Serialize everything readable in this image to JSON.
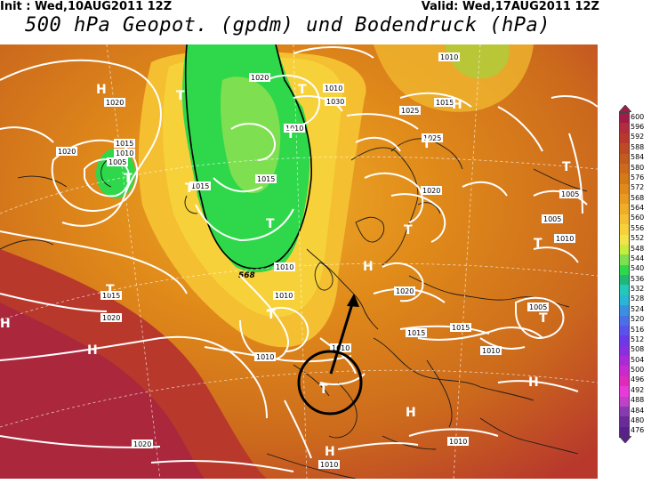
{
  "header": {
    "init": "Init : Wed,10AUG2011 12Z",
    "valid": "Valid: Wed,17AUG2011 12Z",
    "title": "500 hPa Geopot. (gpdm) und Bodendruck (hPa)"
  },
  "colorbar": {
    "levels": [
      "600",
      "596",
      "592",
      "588",
      "584",
      "580",
      "576",
      "572",
      "568",
      "564",
      "560",
      "556",
      "552",
      "548",
      "544",
      "540",
      "536",
      "532",
      "528",
      "524",
      "520",
      "516",
      "512",
      "508",
      "504",
      "500",
      "496",
      "492",
      "488",
      "484",
      "480",
      "476"
    ],
    "colors": [
      "#a01a4a",
      "#b32c3c",
      "#b8392c",
      "#bd4a25",
      "#c35a20",
      "#cc6a1c",
      "#d67a18",
      "#e08a1a",
      "#e89b20",
      "#efad28",
      "#f4bf30",
      "#f7d13a",
      "#f2e34a",
      "#c8ec3a",
      "#7ee050",
      "#2ed84a",
      "#1fb878",
      "#24c8b8",
      "#2ab4d8",
      "#3a90e0",
      "#4a70e8",
      "#5a52ea",
      "#6a3ae8",
      "#8a2ee0",
      "#aa2ad8",
      "#c82ad0",
      "#e02ab8",
      "#e83ad8",
      "#c040c8",
      "#8a3ab0",
      "#6a2a98",
      "#58208a"
    ]
  },
  "map": {
    "isobars": [
      "1020",
      "1030",
      "1010",
      "1015",
      "1020",
      "1025",
      "1015",
      "1010",
      "1025",
      "1020",
      "1005",
      "1010",
      "1015",
      "1020",
      "1015",
      "1005",
      "1010",
      "1020",
      "1015",
      "1015",
      "1005",
      "1020",
      "1010",
      "1010",
      "1005",
      "1010",
      "1010",
      "1010",
      "1015",
      "1015",
      "1020",
      "1010",
      "1010",
      "1010",
      "1020"
    ],
    "isobar_values": [
      "1020",
      "1030",
      "1020",
      "1010",
      "1015",
      "1025",
      "1015",
      "1010",
      "1005",
      "1015",
      "1020",
      "1010",
      "1010",
      "1025",
      "1020",
      "1015",
      "1005",
      "1005",
      "1010",
      "1020",
      "1015",
      "1020",
      "1015",
      "1015",
      "1010",
      "1010",
      "1005",
      "1010",
      "1010",
      "1020",
      "1010",
      "1010",
      "1010"
    ],
    "gpdm_label": "568",
    "high_label": "H",
    "low_label": "T",
    "pressure_centers": [
      {
        "type": "H"
      },
      {
        "type": "H"
      },
      {
        "type": "H"
      },
      {
        "type": "H"
      },
      {
        "type": "H"
      },
      {
        "type": "H"
      },
      {
        "type": "H"
      },
      {
        "type": "H"
      },
      {
        "type": "T"
      },
      {
        "type": "T"
      },
      {
        "type": "T"
      },
      {
        "type": "T"
      },
      {
        "type": "T"
      },
      {
        "type": "T"
      },
      {
        "type": "T"
      },
      {
        "type": "T"
      },
      {
        "type": "T"
      },
      {
        "type": "T"
      },
      {
        "type": "T"
      },
      {
        "type": "T"
      },
      {
        "type": "T"
      },
      {
        "type": "T"
      }
    ]
  }
}
